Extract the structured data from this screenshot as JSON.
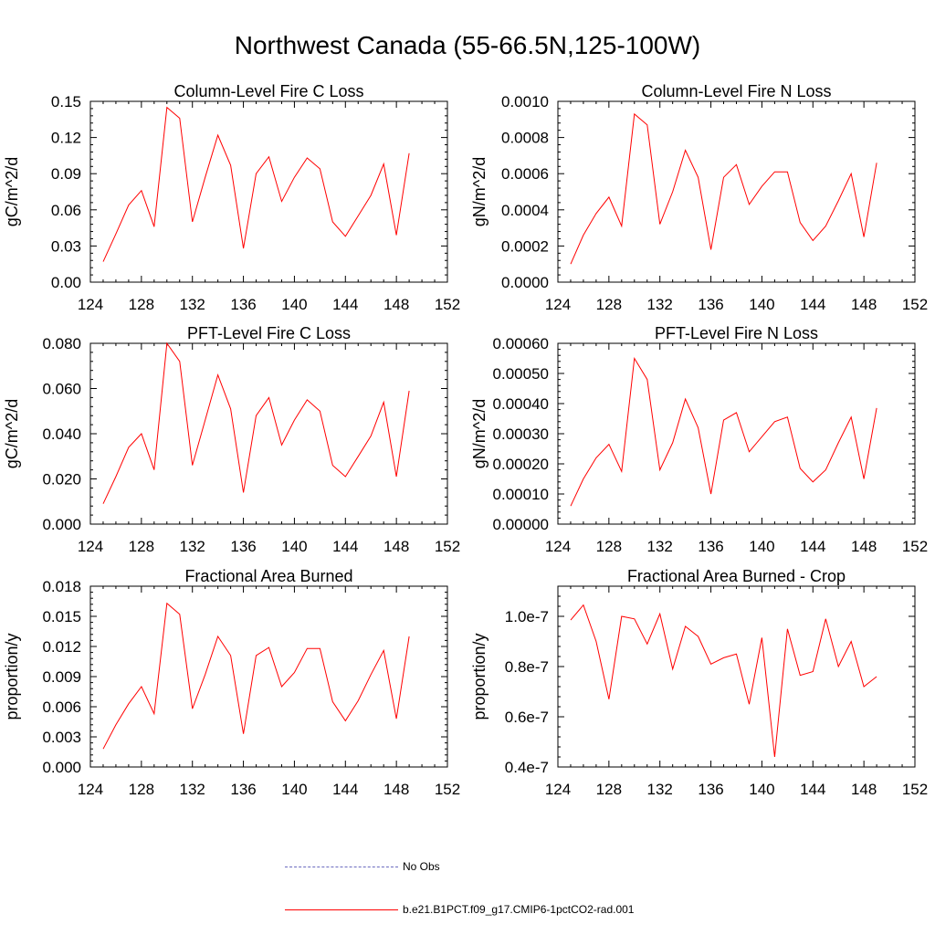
{
  "title": "Northwest Canada (55-66.5N,125-100W)",
  "colors": {
    "series": "#ff0000",
    "obs": "#6b6bbf",
    "axis": "#000000"
  },
  "legend": [
    {
      "label": "No Obs",
      "style": "dashed",
      "color": "#6b6bbf"
    },
    {
      "label": "b.e21.B1PCT.f09_g17.CMIP6-1pctCO2-rad.001",
      "style": "solid",
      "color": "#ff0000"
    }
  ],
  "chart_data": [
    {
      "type": "line",
      "title": "Column-Level Fire C Loss",
      "ylabel": "gC/m^2/d",
      "xlim": [
        124,
        152
      ],
      "ylim": [
        0,
        0.15
      ],
      "xticks": [
        "124",
        "128",
        "132",
        "136",
        "140",
        "144",
        "148",
        "152"
      ],
      "yticks": [
        "0.00",
        "0.03",
        "0.06",
        "0.09",
        "0.12",
        "0.15"
      ],
      "x": [
        125,
        126,
        127,
        128,
        129,
        130,
        131,
        132,
        133,
        134,
        135,
        136,
        137,
        138,
        139,
        140,
        141,
        142,
        143,
        144,
        145,
        146,
        147,
        148,
        149
      ],
      "series": [
        {
          "name": "b.e21.B1PCT.f09_g17.CMIP6-1pctCO2-rad.001",
          "values": [
            0.017,
            0.04,
            0.064,
            0.076,
            0.046,
            0.145,
            0.136,
            0.05,
            0.087,
            0.122,
            0.097,
            0.028,
            0.09,
            0.104,
            0.067,
            0.087,
            0.103,
            0.094,
            0.05,
            0.038,
            0.055,
            0.072,
            0.098,
            0.039,
            0.107
          ]
        }
      ]
    },
    {
      "type": "line",
      "title": "Column-Level Fire N Loss",
      "ylabel": "gN/m^2/d",
      "xlim": [
        124,
        152
      ],
      "ylim": [
        0,
        0.001
      ],
      "xticks": [
        "124",
        "128",
        "132",
        "136",
        "140",
        "144",
        "148",
        "152"
      ],
      "yticks": [
        "0.0000",
        "0.0002",
        "0.0004",
        "0.0006",
        "0.0008",
        "0.0010"
      ],
      "x": [
        125,
        126,
        127,
        128,
        129,
        130,
        131,
        132,
        133,
        134,
        135,
        136,
        137,
        138,
        139,
        140,
        141,
        142,
        143,
        144,
        145,
        146,
        147,
        148,
        149
      ],
      "series": [
        {
          "name": "b.e21.B1PCT.f09_g17.CMIP6-1pctCO2-rad.001",
          "values": [
            0.0001,
            0.00026,
            0.00038,
            0.00047,
            0.00031,
            0.00093,
            0.00087,
            0.00032,
            0.0005,
            0.00073,
            0.00058,
            0.00018,
            0.00058,
            0.00065,
            0.00043,
            0.00053,
            0.00061,
            0.00061,
            0.00033,
            0.00023,
            0.00031,
            0.00045,
            0.0006,
            0.00025,
            0.00066
          ]
        }
      ]
    },
    {
      "type": "line",
      "title": "PFT-Level Fire C Loss",
      "ylabel": "gC/m^2/d",
      "xlim": [
        124,
        152
      ],
      "ylim": [
        0,
        0.08
      ],
      "xticks": [
        "124",
        "128",
        "132",
        "136",
        "140",
        "144",
        "148",
        "152"
      ],
      "yticks": [
        "0.000",
        "0.020",
        "0.040",
        "0.060",
        "0.080"
      ],
      "x": [
        125,
        126,
        127,
        128,
        129,
        130,
        131,
        132,
        133,
        134,
        135,
        136,
        137,
        138,
        139,
        140,
        141,
        142,
        143,
        144,
        145,
        146,
        147,
        148,
        149
      ],
      "series": [
        {
          "name": "b.e21.B1PCT.f09_g17.CMIP6-1pctCO2-rad.001",
          "values": [
            0.009,
            0.021,
            0.034,
            0.04,
            0.024,
            0.08,
            0.072,
            0.026,
            0.046,
            0.066,
            0.051,
            0.014,
            0.048,
            0.056,
            0.035,
            0.046,
            0.055,
            0.05,
            0.026,
            0.021,
            0.03,
            0.039,
            0.054,
            0.021,
            0.059
          ]
        }
      ]
    },
    {
      "type": "line",
      "title": "PFT-Level Fire N Loss",
      "ylabel": "gN/m^2/d",
      "xlim": [
        124,
        152
      ],
      "ylim": [
        0,
        0.0006
      ],
      "xticks": [
        "124",
        "128",
        "132",
        "136",
        "140",
        "144",
        "148",
        "152"
      ],
      "yticks": [
        "0.00000",
        "0.00010",
        "0.00020",
        "0.00030",
        "0.00040",
        "0.00050",
        "0.00060"
      ],
      "x": [
        125,
        126,
        127,
        128,
        129,
        130,
        131,
        132,
        133,
        134,
        135,
        136,
        137,
        138,
        139,
        140,
        141,
        142,
        143,
        144,
        145,
        146,
        147,
        148,
        149
      ],
      "series": [
        {
          "name": "b.e21.B1PCT.f09_g17.CMIP6-1pctCO2-rad.001",
          "values": [
            6e-05,
            0.00015,
            0.00022,
            0.000265,
            0.000175,
            0.00055,
            0.00048,
            0.00018,
            0.00027,
            0.000415,
            0.00032,
            0.0001,
            0.000345,
            0.00037,
            0.00024,
            0.00029,
            0.00034,
            0.000355,
            0.000185,
            0.00014,
            0.00018,
            0.00027,
            0.000355,
            0.00015,
            0.000385
          ]
        }
      ]
    },
    {
      "type": "line",
      "title": "Fractional Area Burned",
      "ylabel": "proportion/y",
      "xlim": [
        124,
        152
      ],
      "ylim": [
        0,
        0.018
      ],
      "xticks": [
        "124",
        "128",
        "132",
        "136",
        "140",
        "144",
        "148",
        "152"
      ],
      "yticks": [
        "0.000",
        "0.003",
        "0.006",
        "0.009",
        "0.012",
        "0.015",
        "0.018"
      ],
      "x": [
        125,
        126,
        127,
        128,
        129,
        130,
        131,
        132,
        133,
        134,
        135,
        136,
        137,
        138,
        139,
        140,
        141,
        142,
        143,
        144,
        145,
        146,
        147,
        148,
        149
      ],
      "series": [
        {
          "name": "b.e21.B1PCT.f09_g17.CMIP6-1pctCO2-rad.001",
          "values": [
            0.0018,
            0.0042,
            0.0063,
            0.008,
            0.0053,
            0.0163,
            0.0152,
            0.0058,
            0.0092,
            0.013,
            0.0111,
            0.0033,
            0.0111,
            0.0119,
            0.008,
            0.0094,
            0.0118,
            0.0118,
            0.0065,
            0.0046,
            0.0066,
            0.0092,
            0.0116,
            0.0048,
            0.013
          ]
        }
      ]
    },
    {
      "type": "line",
      "title": "Fractional Area Burned - Crop",
      "ylabel": "proportion/y",
      "xlim": [
        124,
        152
      ],
      "ylim": [
        4e-08,
        1.12e-07
      ],
      "xticks": [
        "124",
        "128",
        "132",
        "136",
        "140",
        "144",
        "148",
        "152"
      ],
      "yticks": [
        "0.4e-7",
        "0.6e-7",
        "0.8e-7",
        "1.0e-7"
      ],
      "ytick_values": [
        4e-08,
        6e-08,
        8e-08,
        1e-07
      ],
      "x": [
        125,
        126,
        127,
        128,
        129,
        130,
        131,
        132,
        133,
        134,
        135,
        136,
        137,
        138,
        139,
        140,
        141,
        142,
        143,
        144,
        145,
        146,
        147,
        148,
        149
      ],
      "series": [
        {
          "name": "b.e21.B1PCT.f09_g17.CMIP6-1pctCO2-rad.001",
          "values": [
            9.85e-08,
            1.045e-07,
            9e-08,
            6.7e-08,
            1e-07,
            9.9e-08,
            8.9e-08,
            1.01e-07,
            7.9e-08,
            9.6e-08,
            9.2e-08,
            8.1e-08,
            8.35e-08,
            8.5e-08,
            6.5e-08,
            9.15e-08,
            4.4e-08,
            9.5e-08,
            7.65e-08,
            7.8e-08,
            9.9e-08,
            8e-08,
            9e-08,
            7.2e-08,
            7.6e-08
          ]
        }
      ]
    }
  ]
}
